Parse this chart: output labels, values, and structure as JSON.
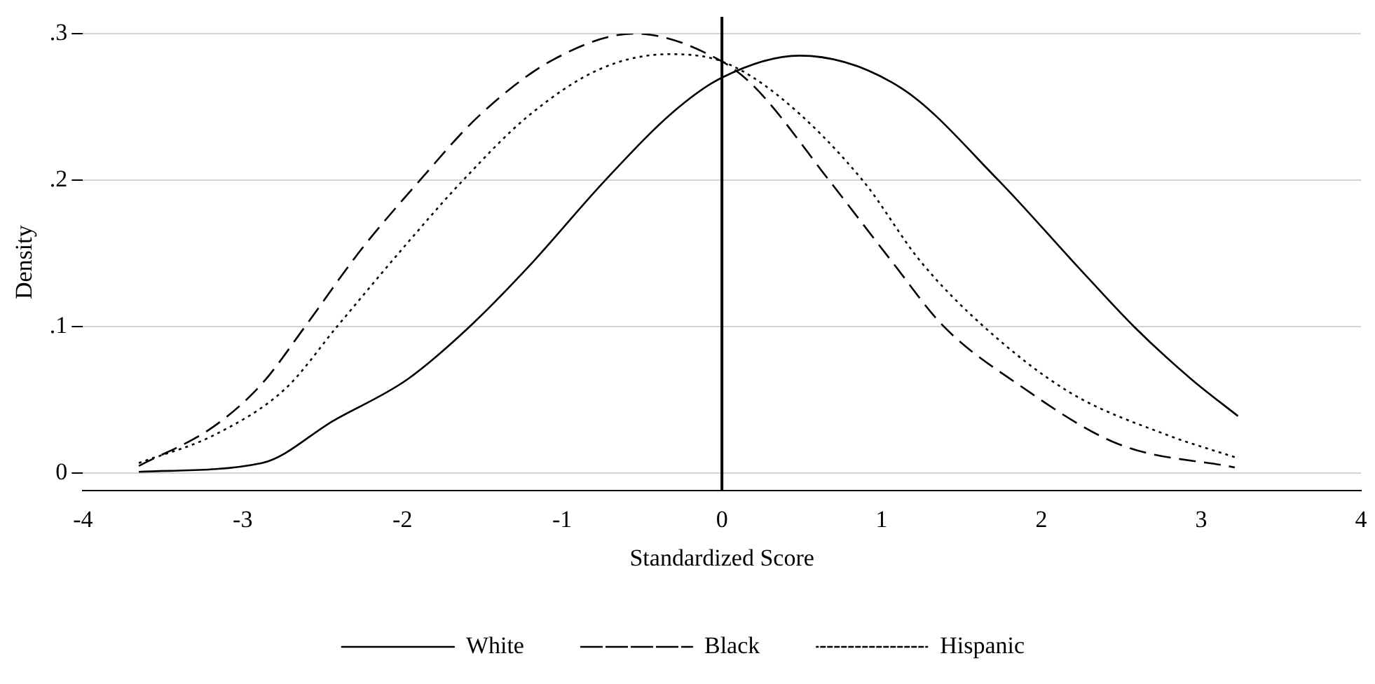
{
  "chart_data": {
    "type": "line",
    "xlabel": "Standardized Score",
    "ylabel": "Density",
    "xlim": [
      -4,
      4
    ],
    "xticks": [
      -4,
      -3,
      -2,
      -1,
      0,
      1,
      2,
      3,
      4
    ],
    "ylim": [
      -0.012,
      0.3
    ],
    "yticks": [
      0,
      {
        "value": 0.1,
        "label": ".1"
      },
      {
        "value": 0.2,
        "label": ".2"
      },
      {
        "value": 0.3,
        "label": ".3"
      }
    ],
    "grid": "y",
    "legend": "bottom",
    "marker": "none",
    "ref_lines": [
      {
        "axis": "x",
        "value": 0,
        "color": "#000000"
      }
    ],
    "series": [
      {
        "name": "White",
        "color": "#000000",
        "line_style": "solid",
        "x": [
          -3.65,
          -2.88,
          -2.43,
          -1.97,
          -1.58,
          -1.21,
          -0.73,
          -0.3,
          0,
          0.485,
          1.12,
          1.73,
          2.21,
          2.58,
          2.94,
          3.23
        ],
        "values": [
          0.001,
          0.007,
          0.036,
          0.064,
          0.1,
          0.141,
          0.2,
          0.247,
          0.27,
          0.285,
          0.263,
          0.2,
          0.143,
          0.1,
          0.064,
          0.039
        ]
      },
      {
        "name": "Black",
        "color": "#000000",
        "line_style": "dashed",
        "x": [
          -3.65,
          -3.18,
          -2.88,
          -2.61,
          -2.27,
          -1.89,
          -1.52,
          -1.06,
          -0.545,
          0,
          0.21,
          0.67,
          1.06,
          1.39,
          1.85,
          2.48,
          3.21
        ],
        "values": [
          0.005,
          0.032,
          0.061,
          0.1,
          0.151,
          0.2,
          0.244,
          0.282,
          0.3,
          0.281,
          0.263,
          0.2,
          0.145,
          0.1,
          0.061,
          0.02,
          0.004
        ]
      },
      {
        "name": "Hispanic",
        "color": "#000000",
        "line_style": "dotted",
        "x": [
          -3.65,
          -3.18,
          -2.73,
          -2.41,
          -1.97,
          -1.62,
          -1.21,
          -0.76,
          -0.33,
          0,
          0.36,
          0.88,
          1.24,
          1.64,
          2.18,
          2.79,
          3.21
        ],
        "values": [
          0.007,
          0.026,
          0.058,
          0.1,
          0.157,
          0.2,
          0.244,
          0.276,
          0.286,
          0.281,
          0.257,
          0.2,
          0.145,
          0.1,
          0.055,
          0.026,
          0.011
        ]
      }
    ]
  }
}
